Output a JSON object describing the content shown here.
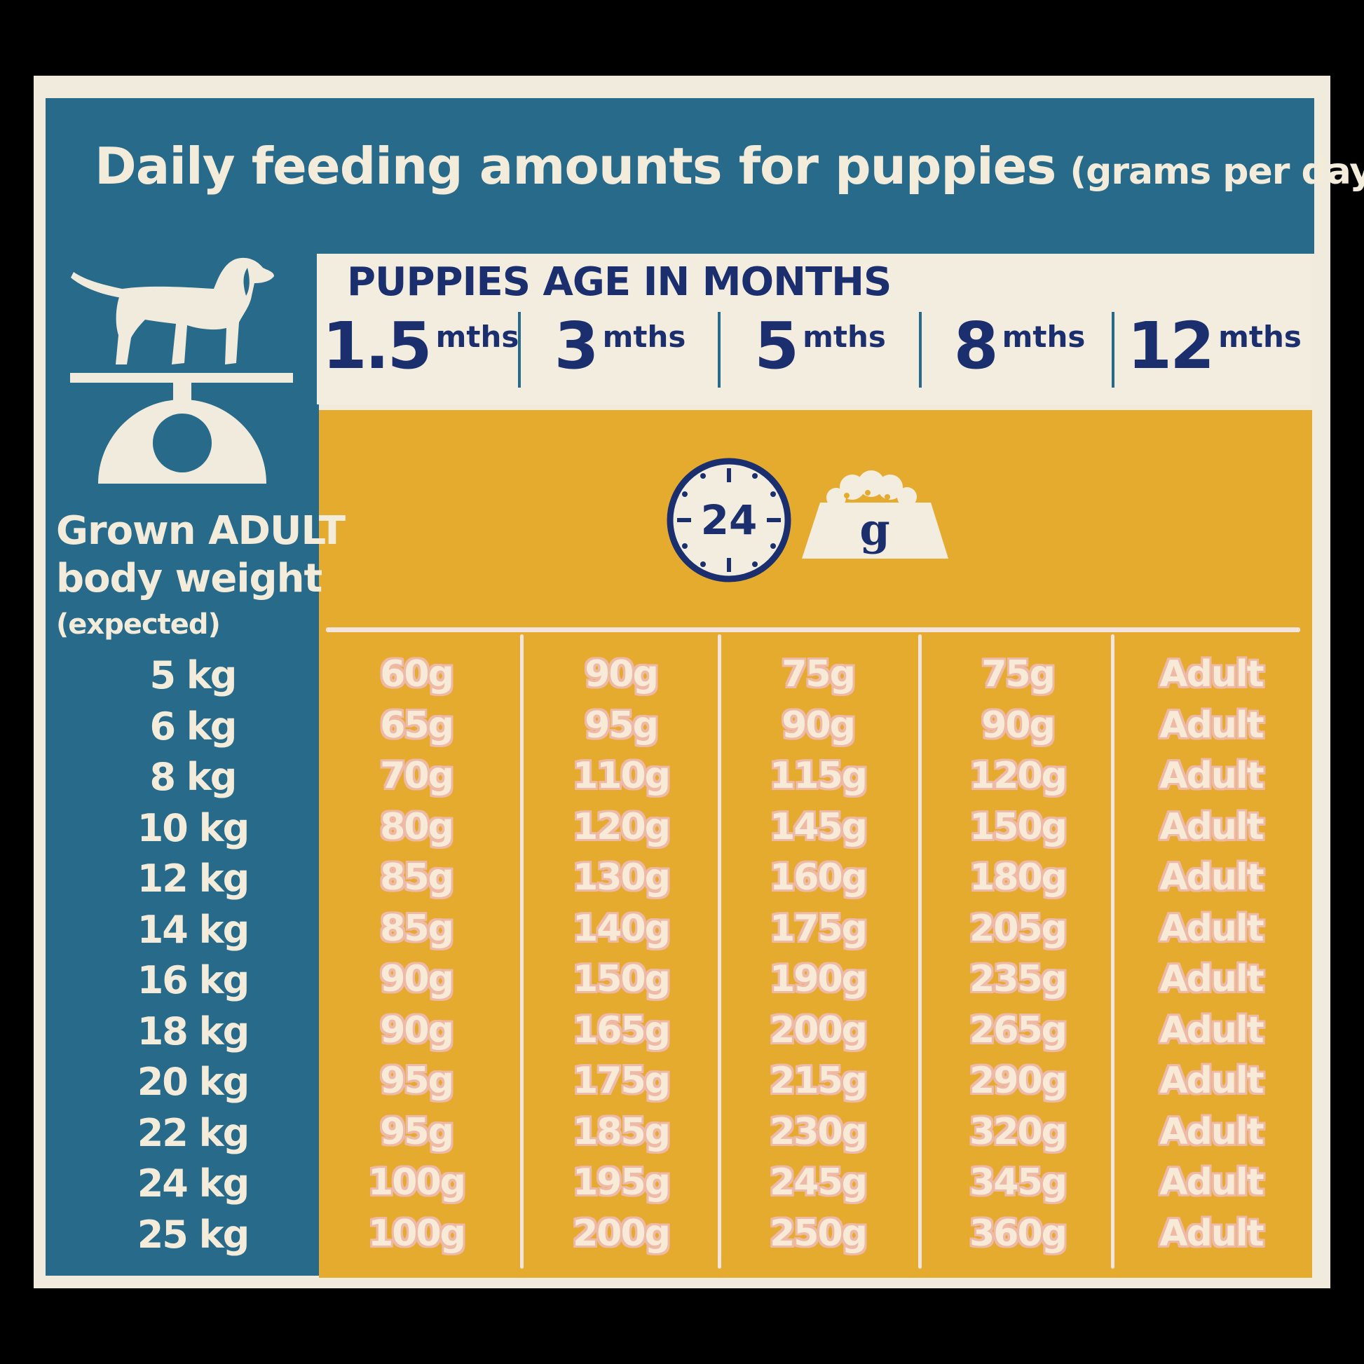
{
  "title": {
    "main": "Daily feeding amounts for puppies",
    "sub": "(grams per day):"
  },
  "age_heading": "PUPPIES AGE IN MONTHS",
  "ages": [
    {
      "num": "1.5",
      "unit": "mths"
    },
    {
      "num": "3",
      "unit": "mths"
    },
    {
      "num": "5",
      "unit": "mths"
    },
    {
      "num": "8",
      "unit": "mths"
    },
    {
      "num": "12",
      "unit": "mths"
    }
  ],
  "weight_label": {
    "line1": "Grown ADULT",
    "line2": "body weight",
    "line3": "(expected)"
  },
  "icons": {
    "clock_text": "24",
    "bowl_text": "g",
    "dog": "dog-on-scale-icon"
  },
  "rows": [
    {
      "weight": "5 kg",
      "values": [
        "60g",
        "90g",
        "75g",
        "75g",
        "Adult"
      ]
    },
    {
      "weight": "6 kg",
      "values": [
        "65g",
        "95g",
        "90g",
        "90g",
        "Adult"
      ]
    },
    {
      "weight": "8 kg",
      "values": [
        "70g",
        "110g",
        "115g",
        "120g",
        "Adult"
      ]
    },
    {
      "weight": "10 kg",
      "values": [
        "80g",
        "120g",
        "145g",
        "150g",
        "Adult"
      ]
    },
    {
      "weight": "12 kg",
      "values": [
        "85g",
        "130g",
        "160g",
        "180g",
        "Adult"
      ]
    },
    {
      "weight": "14 kg",
      "values": [
        "85g",
        "140g",
        "175g",
        "205g",
        "Adult"
      ]
    },
    {
      "weight": "16 kg",
      "values": [
        "90g",
        "150g",
        "190g",
        "235g",
        "Adult"
      ]
    },
    {
      "weight": "18 kg",
      "values": [
        "90g",
        "165g",
        "200g",
        "265g",
        "Adult"
      ]
    },
    {
      "weight": "20 kg",
      "values": [
        "95g",
        "175g",
        "215g",
        "290g",
        "Adult"
      ]
    },
    {
      "weight": "22 kg",
      "values": [
        "95g",
        "185g",
        "230g",
        "320g",
        "Adult"
      ]
    },
    {
      "weight": "24 kg",
      "values": [
        "100g",
        "195g",
        "245g",
        "345g",
        "Adult"
      ]
    },
    {
      "weight": "25 kg",
      "values": [
        "100g",
        "200g",
        "250g",
        "360g",
        "Adult"
      ]
    }
  ],
  "colors": {
    "blue": "#286a89",
    "navy": "#1b2f6e",
    "yellow": "#e5ab2f",
    "cream": "#f1ebdd",
    "cell_outline": "#efb9a8"
  }
}
